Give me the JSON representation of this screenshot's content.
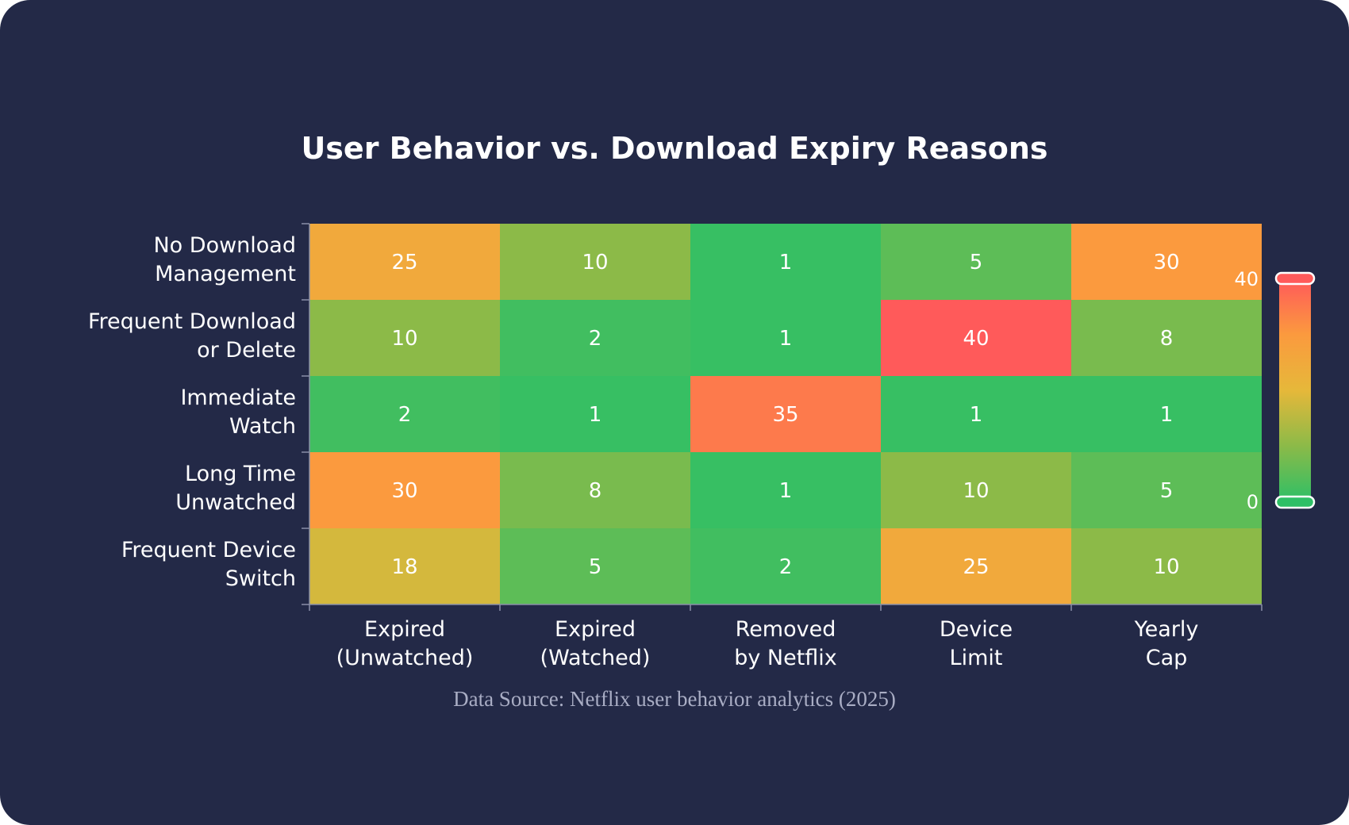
{
  "chart_data": {
    "type": "heatmap",
    "title": "User Behavior vs. Download Expiry Reasons",
    "rows": [
      [
        "No Download",
        "Management"
      ],
      [
        "Frequent Download",
        "or Delete"
      ],
      [
        "Immediate",
        "Watch"
      ],
      [
        "Long Time",
        "Unwatched"
      ],
      [
        "Frequent Device",
        "Switch"
      ]
    ],
    "columns": [
      [
        "Expired",
        "(Unwatched)"
      ],
      [
        "Expired",
        "(Watched)"
      ],
      [
        "Removed",
        "by Netflix"
      ],
      [
        "Device",
        "Limit"
      ],
      [
        "Yearly",
        "Cap"
      ]
    ],
    "values": [
      [
        25,
        10,
        1,
        5,
        30
      ],
      [
        10,
        2,
        1,
        40,
        8
      ],
      [
        2,
        1,
        35,
        1,
        1
      ],
      [
        30,
        8,
        1,
        10,
        5
      ],
      [
        18,
        5,
        2,
        25,
        10
      ]
    ],
    "color_scale": {
      "min": 0,
      "max": 40,
      "min_label": "0",
      "max_label": "40",
      "stops": [
        "#2ebf66",
        "#8cba48",
        "#e6b83a",
        "#fb9a3e",
        "#ff5a5a"
      ]
    },
    "source": "Data Source: Netflix user behavior analytics (2025)"
  }
}
